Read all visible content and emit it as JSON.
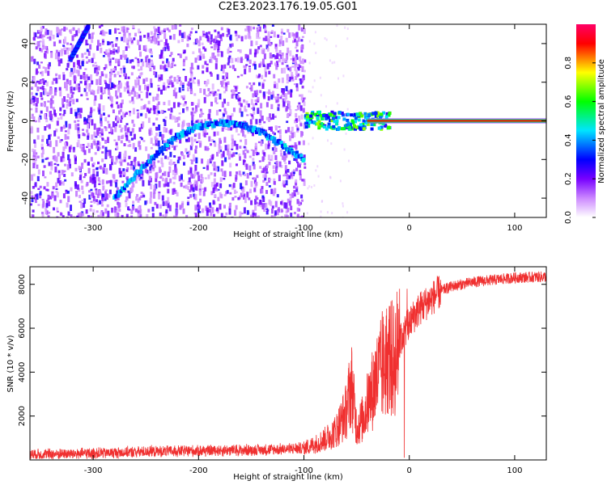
{
  "figure": {
    "title": "C2E3.2023.176.19.05.G01"
  },
  "chart_data": [
    {
      "type": "heatmap",
      "title": "",
      "xlabel": "Height of straight line (km)",
      "ylabel": "Frequency (Hz)",
      "xlim": [
        -360,
        130
      ],
      "ylim": [
        -50,
        50
      ],
      "xticks": [
        -300,
        -200,
        -100,
        0,
        100
      ],
      "yticks": [
        -40,
        -20,
        0,
        20,
        40
      ],
      "colorbar": {
        "label": "Normalized spectral amplitude",
        "range": [
          0,
          1
        ],
        "ticks": [
          0.0,
          0.2,
          0.4,
          0.6,
          0.8
        ],
        "colormap": [
          "#ffffff",
          "#cc88ff",
          "#7700ff",
          "#0000ff",
          "#00e5ff",
          "#00ff00",
          "#ffff00",
          "#ff0000",
          "#ff0066"
        ]
      },
      "features": {
        "arc": {
          "x": [
            -280,
            -260,
            -240,
            -220,
            -200,
            -180,
            -160,
            -140,
            -120,
            -100
          ],
          "y": [
            -40,
            -28,
            -17,
            -8,
            -3,
            -1,
            -2,
            -6,
            -13,
            -20
          ]
        },
        "carrier_frequency_hz": 0,
        "diagonal_trace": {
          "x": [
            -322,
            -305
          ],
          "y": [
            32,
            49
          ]
        },
        "noise_extent_x": [
          -360,
          -100
        ]
      },
      "grid": false
    },
    {
      "type": "line",
      "title": "",
      "xlabel": "Height of straight line (km)",
      "ylabel": "SNR (10 * v/v)",
      "xlim": [
        -360,
        130
      ],
      "ylim": [
        0,
        8800
      ],
      "xticks": [
        -300,
        -200,
        -100,
        0,
        100
      ],
      "yticks": [
        2000,
        4000,
        6000,
        8000
      ],
      "series": [
        {
          "color": "#f03030",
          "x": [
            -360,
            -300,
            -250,
            -200,
            -150,
            -120,
            -100,
            -90,
            -80,
            -70,
            -60,
            -55,
            -50,
            -45,
            -40,
            -35,
            -30,
            -25,
            -20,
            -15,
            -10,
            -5,
            0,
            5,
            10,
            20,
            30,
            40,
            60,
            80,
            100,
            130
          ],
          "y": [
            250,
            300,
            380,
            420,
            450,
            480,
            550,
            700,
            950,
            1300,
            2200,
            3500,
            1500,
            1800,
            2500,
            3200,
            3800,
            4200,
            4800,
            4500,
            5200,
            5800,
            6200,
            6600,
            6900,
            7300,
            7700,
            7900,
            8100,
            8200,
            8300,
            8350
          ]
        }
      ],
      "grid": false
    }
  ]
}
